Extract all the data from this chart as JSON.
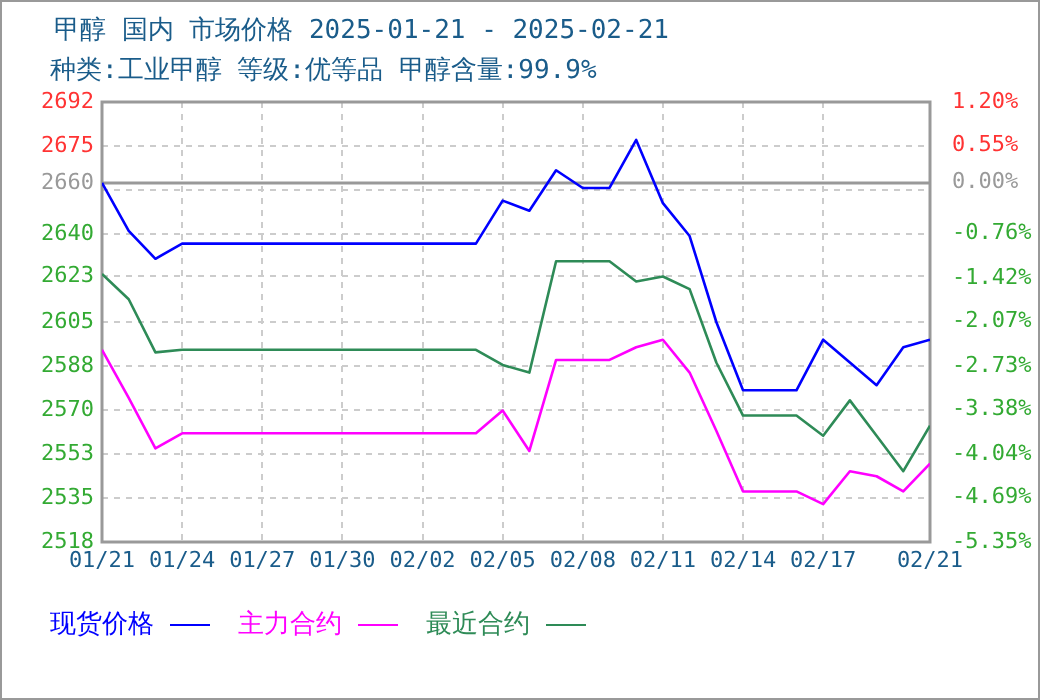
{
  "chart_data": {
    "type": "line",
    "title": "甲醇 国内 市场价格 2025-01-21 - 2025-02-21",
    "subtitle": "种类:工业甲醇 等级:优等品 甲醇含量:99.9%",
    "x": [
      "2025-01-21",
      "2025-01-22",
      "2025-01-23",
      "2025-01-24",
      "2025-02-04",
      "2025-02-05",
      "2025-02-06",
      "2025-02-07",
      "2025-02-08",
      "2025-02-09",
      "2025-02-10",
      "2025-02-11",
      "2025-02-12",
      "2025-02-13",
      "2025-02-14",
      "2025-02-16",
      "2025-02-17",
      "2025-02-18",
      "2025-02-19",
      "2025-02-20",
      "2025-02-21"
    ],
    "series": [
      {
        "name": "现货价格",
        "color": "#0000ff",
        "values": [
          2660,
          2641,
          2630,
          2636,
          2636,
          2653,
          2649,
          2665,
          2658,
          2658,
          2677,
          2652,
          2639,
          2605,
          2578,
          2578,
          2598,
          2589,
          2580,
          2595,
          2598
        ]
      },
      {
        "name": "主力合约",
        "color": "#ff00ff",
        "values": [
          2594,
          2575,
          2555,
          2561,
          2561,
          2570,
          2554,
          2590,
          2590,
          2590,
          2595,
          2598,
          2585,
          2562,
          2538,
          2538,
          2533,
          2546,
          2544,
          2538,
          2549
        ]
      },
      {
        "name": "最近合约",
        "color": "#2e8b57",
        "values": [
          2624,
          2614,
          2593,
          2594,
          2594,
          2588,
          2585,
          2629,
          2629,
          2629,
          2621,
          2623,
          2618,
          2589,
          2568,
          2568,
          2560,
          2574,
          2560,
          2546,
          2564
        ]
      }
    ],
    "xlim": [
      "2025-01-21",
      "2025-02-21"
    ],
    "xticks": [
      {
        "value": "2025-01-21",
        "label": "01/21"
      },
      {
        "value": "2025-01-24",
        "label": "01/24"
      },
      {
        "value": "2025-01-27",
        "label": "01/27"
      },
      {
        "value": "2025-01-30",
        "label": "01/30"
      },
      {
        "value": "2025-02-02",
        "label": "02/02"
      },
      {
        "value": "2025-02-05",
        "label": "02/05"
      },
      {
        "value": "2025-02-08",
        "label": "02/08"
      },
      {
        "value": "2025-02-11",
        "label": "02/11"
      },
      {
        "value": "2025-02-14",
        "label": "02/14"
      },
      {
        "value": "2025-02-17",
        "label": "02/17"
      },
      {
        "value": "2025-02-21",
        "label": "02/21"
      }
    ],
    "ylim": [
      2518,
      2692
    ],
    "yticks": [
      2518,
      {
        "value": 2535.4,
        "label": "2535"
      },
      {
        "value": 2552.8,
        "label": "2553"
      },
      {
        "value": 2570.2,
        "label": "2570"
      },
      {
        "value": 2587.6,
        "label": "2588"
      },
      2605,
      2623,
      {
        "value": 2639.8,
        "label": "2640"
      },
      {
        "value": 2657.2,
        "label": null
      },
      2660,
      {
        "value": 2674.6,
        "label": "2675"
      },
      2692
    ],
    "y2lim": [
      -5.35,
      1.2
    ],
    "y2ticks": [
      {
        "value": -5.35,
        "label": "-5.35%"
      },
      {
        "value": -4.69,
        "label": "-4.69%"
      },
      {
        "value": -4.04,
        "label": "-4.04%"
      },
      {
        "value": -3.38,
        "label": "-3.38%"
      },
      {
        "value": -2.73,
        "label": "-2.73%"
      },
      {
        "value": -2.07,
        "label": "-2.07%"
      },
      {
        "value": -1.42,
        "label": "-1.42%"
      },
      {
        "value": -0.76,
        "label": "-0.76%"
      },
      {
        "value": 0,
        "label": "0.00%"
      },
      {
        "value": 0.55,
        "label": "0.55%"
      },
      {
        "value": 1.2,
        "label": "1.20%"
      }
    ],
    "ref_lines": [
      {
        "axis": "y",
        "value": 2660,
        "color": "#999999"
      }
    ],
    "grid": true,
    "legend": "bottom",
    "marker": "none",
    "line_style": "solid"
  }
}
